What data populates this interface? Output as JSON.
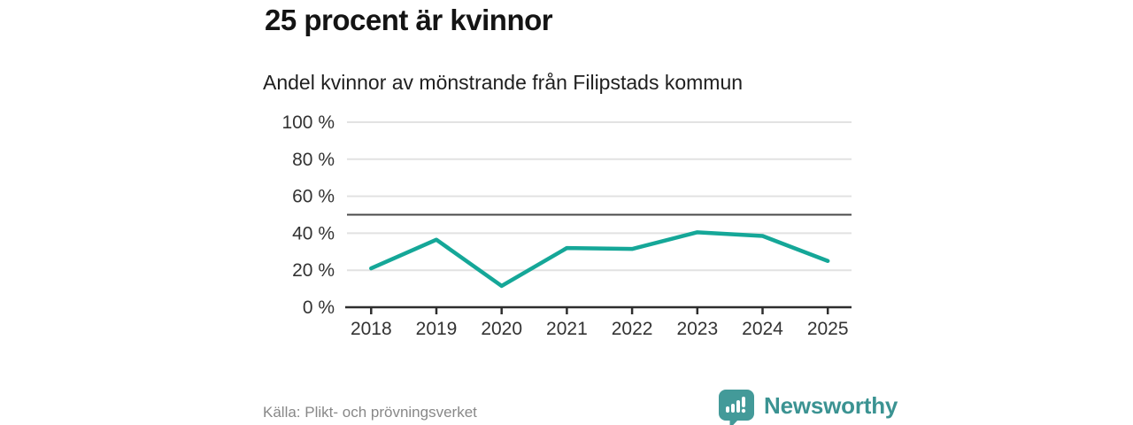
{
  "header": {
    "title": "25 procent är kvinnor",
    "subtitle": "Andel kvinnor av mönstrande från Filipstads kommun"
  },
  "chart_data": {
    "type": "line",
    "title": "25 procent är kvinnor",
    "subtitle": "Andel kvinnor av mönstrande från Filipstads kommun",
    "x": [
      2018,
      2019,
      2020,
      2021,
      2022,
      2023,
      2024,
      2025
    ],
    "x_tick_labels": [
      "2018",
      "2019",
      "2020",
      "2021",
      "2022",
      "2023",
      "2024",
      "2025"
    ],
    "series": [
      {
        "name": "Andel kvinnor",
        "values": [
          21,
          36.5,
          11.5,
          32,
          31.5,
          40.5,
          38.5,
          25
        ]
      }
    ],
    "unit": "%",
    "ylim": [
      0,
      100
    ],
    "y_ticks": [
      0,
      20,
      40,
      60,
      80,
      100
    ],
    "y_tick_labels": [
      "0 %",
      "20 %",
      "40 %",
      "60 %",
      "80 %",
      "100 %"
    ],
    "reference_line_value": 50,
    "grid": true,
    "legend": "none",
    "colors": {
      "line": "#15a798",
      "gridline": "#e2e2e2",
      "axis": "#2e2e2e",
      "reference_line": "#4a4a4a",
      "tick_label": "#333333"
    }
  },
  "footer": {
    "source": "Källa: Plikt- och prövningsverket",
    "logo_text": "Newsworthy",
    "logo_color": "#3b9392",
    "logo_bubble_color": "#439a99"
  }
}
